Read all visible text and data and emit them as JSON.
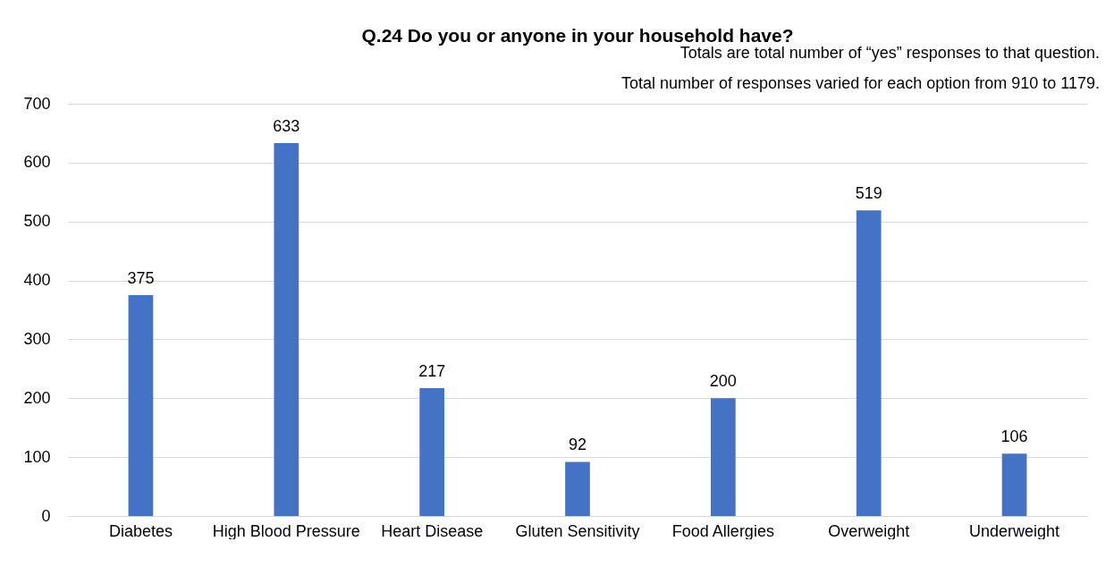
{
  "chart_data": {
    "type": "bar",
    "title": "Q.24  Do you or anyone in your household have?",
    "subtitle": "Totals are total number of “yes” responses to that question.",
    "annotations": [
      "Total number of responses varied for each option from 910 to 1179."
    ],
    "categories": [
      "Diabetes",
      "High Blood Pressure",
      "Heart Disease",
      "Gluten Sensitivity",
      "Food Allergies",
      "Overweight",
      "Underweight"
    ],
    "values": [
      375,
      633,
      217,
      92,
      200,
      519,
      106
    ],
    "color": "#4472c4",
    "ylim": [
      0,
      700
    ],
    "yticks": [
      0,
      100,
      200,
      300,
      400,
      500,
      600,
      700
    ],
    "grid": "y",
    "data_labels": true
  }
}
